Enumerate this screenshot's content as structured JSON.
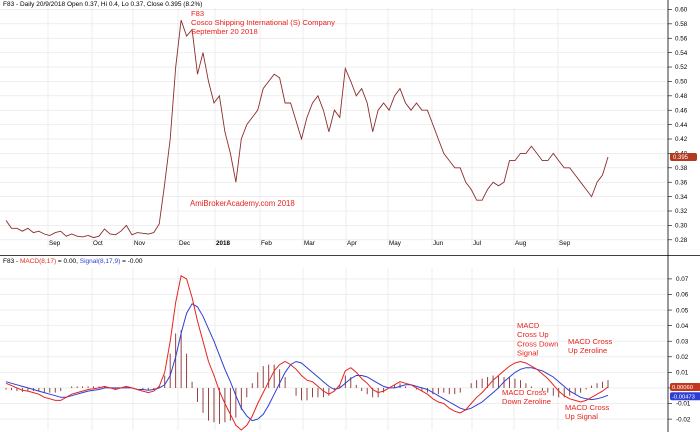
{
  "colors": {
    "price_line": "#8B2D2D",
    "annotation": "#E8231E",
    "macd_line": "#E8231E",
    "signal_line": "#2C3FD4",
    "histogram": "#8B2D2D",
    "grid": "#E3E3E3",
    "axis": "#000000",
    "price_badge": "#B23A1E",
    "macd_badge": "#C0391E",
    "signal_badge": "#2C3FD4"
  },
  "price_panel": {
    "header": "F83 - Daily 20/9/2018 Open 0.37, Hi 0.4, Lo 0.37, Close 0.395 (8.2%)",
    "title_lines": [
      "F83",
      "Cosco Shipping International (S) Company",
      "September 20 2018"
    ],
    "watermark": "AmiBrokerAcademy.com  2018",
    "last_value_label": "0.395"
  },
  "macd_panel": {
    "header_prefix": "F83 - ",
    "macd_label": "MACD(8,17)",
    "header_mid": " = 0.00, ",
    "signal_label": "Signal(8,17,9)",
    "header_suffix": " = -0.00",
    "macd_value_label": "0.00060",
    "signal_value_label": "-0.00473"
  },
  "annotations": [
    {
      "lines": [
        "MACD",
        "Cross Up",
        "Cross Down",
        "Signal"
      ]
    },
    {
      "lines": [
        "MACD Cross",
        "Up Zeroline"
      ]
    },
    {
      "lines": [
        "MACD Cross",
        "Down Zeroline"
      ]
    },
    {
      "lines": [
        "MACD Cross",
        "Up Signal"
      ]
    }
  ],
  "chart_data": [
    {
      "type": "line",
      "title": "F83 Cosco Shipping International (S) Company September 20 2018",
      "x_tick_labels": [
        "Sep",
        "Oct",
        "Nov",
        "Dec",
        "2018",
        "Feb",
        "Mar",
        "Apr",
        "May",
        "Jun",
        "Jul",
        "Aug",
        "Sep"
      ],
      "y_ticks": [
        0.28,
        0.3,
        0.32,
        0.34,
        0.36,
        0.38,
        0.4,
        0.42,
        0.44,
        0.46,
        0.48,
        0.5,
        0.52,
        0.54,
        0.56,
        0.58,
        0.6
      ],
      "ylim": [
        0.27,
        0.602
      ],
      "grid": true,
      "series": [
        {
          "name": "Close",
          "values": [
            0.307,
            0.296,
            0.296,
            0.292,
            0.296,
            0.29,
            0.292,
            0.288,
            0.286,
            0.29,
            0.292,
            0.285,
            0.288,
            0.285,
            0.284,
            0.286,
            0.283,
            0.285,
            0.295,
            0.288,
            0.287,
            0.292,
            0.3,
            0.287,
            0.29,
            0.289,
            0.288,
            0.29,
            0.302,
            0.358,
            0.42,
            0.52,
            0.585,
            0.563,
            0.572,
            0.51,
            0.54,
            0.5,
            0.47,
            0.48,
            0.43,
            0.4,
            0.36,
            0.42,
            0.44,
            0.45,
            0.46,
            0.49,
            0.5,
            0.51,
            0.505,
            0.47,
            0.47,
            0.445,
            0.42,
            0.45,
            0.47,
            0.48,
            0.46,
            0.43,
            0.46,
            0.45,
            0.518,
            0.5,
            0.48,
            0.49,
            0.47,
            0.43,
            0.46,
            0.47,
            0.46,
            0.48,
            0.49,
            0.47,
            0.46,
            0.47,
            0.46,
            0.46,
            0.44,
            0.42,
            0.4,
            0.39,
            0.38,
            0.38,
            0.36,
            0.35,
            0.335,
            0.335,
            0.35,
            0.36,
            0.355,
            0.36,
            0.39,
            0.39,
            0.4,
            0.4,
            0.41,
            0.4,
            0.39,
            0.39,
            0.4,
            0.39,
            0.38,
            0.38,
            0.37,
            0.36,
            0.35,
            0.34,
            0.36,
            0.37,
            0.395
          ]
        }
      ]
    },
    {
      "type": "line",
      "title": "MACD(8,17) / Signal(8,17,9)",
      "x_tick_labels": [
        "Sep",
        "Oct",
        "Nov",
        "Dec",
        "2018",
        "Feb",
        "Mar",
        "Apr",
        "May",
        "Jun",
        "Jul",
        "Aug",
        "Sep"
      ],
      "y_ticks": [
        -0.02,
        -0.01,
        0.0,
        0.01,
        0.02,
        0.03,
        0.04,
        0.05,
        0.06,
        0.07
      ],
      "ylim": [
        -0.027,
        0.077
      ],
      "grid": true,
      "series": [
        {
          "name": "MACD(8,17)",
          "values": [
            0.003,
            0.0015,
            0.0,
            -0.0015,
            -0.002,
            -0.003,
            -0.004,
            -0.006,
            -0.007,
            -0.008,
            -0.008,
            -0.006,
            -0.004,
            -0.003,
            -0.002,
            -0.001,
            -0.0005,
            0.0,
            0.001,
            0.0,
            -0.001,
            0.0,
            0.001,
            0.0,
            -0.001,
            -0.002,
            -0.003,
            -0.002,
            0.001,
            0.01,
            0.03,
            0.055,
            0.072,
            0.07,
            0.058,
            0.043,
            0.03,
            0.017,
            0.008,
            -0.002,
            -0.01,
            -0.017,
            -0.024,
            -0.027,
            -0.024,
            -0.018,
            -0.01,
            -0.003,
            0.004,
            0.011,
            0.015,
            0.017,
            0.015,
            0.012,
            0.008,
            0.005,
            0.004,
            0.001,
            -0.002,
            -0.004,
            -0.002,
            0.002,
            0.011,
            0.013,
            0.01,
            0.006,
            0.003,
            -0.001,
            -0.003,
            -0.002,
            0.0,
            0.002,
            0.004,
            0.003,
            0.002,
            0.0,
            -0.002,
            -0.004,
            -0.007,
            -0.009,
            -0.01,
            -0.013,
            -0.015,
            -0.016,
            -0.014,
            -0.01,
            -0.006,
            -0.003,
            0.001,
            0.005,
            0.008,
            0.011,
            0.014,
            0.016,
            0.017,
            0.016,
            0.014,
            0.012,
            0.009,
            0.006,
            0.002,
            -0.002,
            -0.005,
            -0.007,
            -0.008,
            -0.009,
            -0.008,
            -0.006,
            -0.004,
            -0.002,
            0.0006
          ]
        },
        {
          "name": "Signal(8,17,9)",
          "values": [
            0.004,
            0.003,
            0.002,
            0.001,
            0.0,
            -0.001,
            -0.002,
            -0.003,
            -0.004,
            -0.005,
            -0.006,
            -0.006,
            -0.005,
            -0.004,
            -0.003,
            -0.002,
            -0.0015,
            -0.001,
            0.0,
            0.0,
            0.0,
            0.0,
            0.0,
            0.0,
            -0.001,
            -0.001,
            -0.0015,
            -0.001,
            0.0,
            0.002,
            0.008,
            0.02,
            0.035,
            0.048,
            0.054,
            0.052,
            0.046,
            0.038,
            0.03,
            0.021,
            0.012,
            0.004,
            -0.005,
            -0.013,
            -0.018,
            -0.021,
            -0.02,
            -0.017,
            -0.011,
            -0.004,
            0.003,
            0.01,
            0.015,
            0.017,
            0.016,
            0.013,
            0.01,
            0.007,
            0.004,
            0.001,
            -0.001,
            0.0,
            0.003,
            0.006,
            0.008,
            0.008,
            0.007,
            0.005,
            0.003,
            0.001,
            0.0,
            0.0,
            0.001,
            0.002,
            0.002,
            0.001,
            0.0,
            -0.001,
            -0.003,
            -0.005,
            -0.007,
            -0.009,
            -0.011,
            -0.013,
            -0.014,
            -0.013,
            -0.011,
            -0.009,
            -0.006,
            -0.003,
            0.0,
            0.004,
            0.007,
            0.01,
            0.012,
            0.013,
            0.013,
            0.012,
            0.011,
            0.009,
            0.007,
            0.004,
            0.001,
            -0.002,
            -0.004,
            -0.006,
            -0.007,
            -0.0075,
            -0.007,
            -0.006,
            -0.0047
          ]
        },
        {
          "name": "Histogram",
          "values": [
            -0.001,
            -0.0015,
            -0.002,
            -0.0025,
            -0.002,
            -0.002,
            -0.002,
            -0.003,
            -0.003,
            -0.003,
            -0.002,
            0.0,
            0.001,
            0.001,
            0.001,
            0.001,
            0.001,
            0.001,
            0.001,
            0.0,
            -0.001,
            0.0,
            0.001,
            0.0,
            0.0,
            -0.001,
            -0.0015,
            -0.001,
            0.001,
            0.008,
            0.022,
            0.035,
            0.037,
            0.022,
            0.004,
            -0.009,
            -0.016,
            -0.021,
            -0.022,
            -0.023,
            -0.022,
            -0.021,
            -0.019,
            -0.014,
            -0.006,
            0.003,
            0.01,
            0.014,
            0.015,
            0.015,
            0.012,
            0.007,
            0.0,
            -0.005,
            -0.008,
            -0.008,
            -0.006,
            -0.006,
            -0.006,
            -0.005,
            -0.001,
            0.002,
            0.008,
            0.007,
            0.002,
            -0.002,
            -0.004,
            -0.006,
            -0.006,
            -0.003,
            0.0,
            0.002,
            0.003,
            0.001,
            0.0,
            -0.001,
            -0.002,
            -0.003,
            -0.004,
            -0.004,
            -0.003,
            -0.004,
            -0.004,
            -0.003,
            0.0,
            0.003,
            0.005,
            0.006,
            0.007,
            0.008,
            0.008,
            0.007,
            0.007,
            0.006,
            0.005,
            0.003,
            0.001,
            0.0,
            -0.002,
            -0.003,
            -0.005,
            -0.006,
            -0.006,
            -0.005,
            -0.004,
            -0.003,
            -0.001,
            0.0015,
            0.003,
            0.004,
            0.005
          ]
        }
      ]
    }
  ]
}
